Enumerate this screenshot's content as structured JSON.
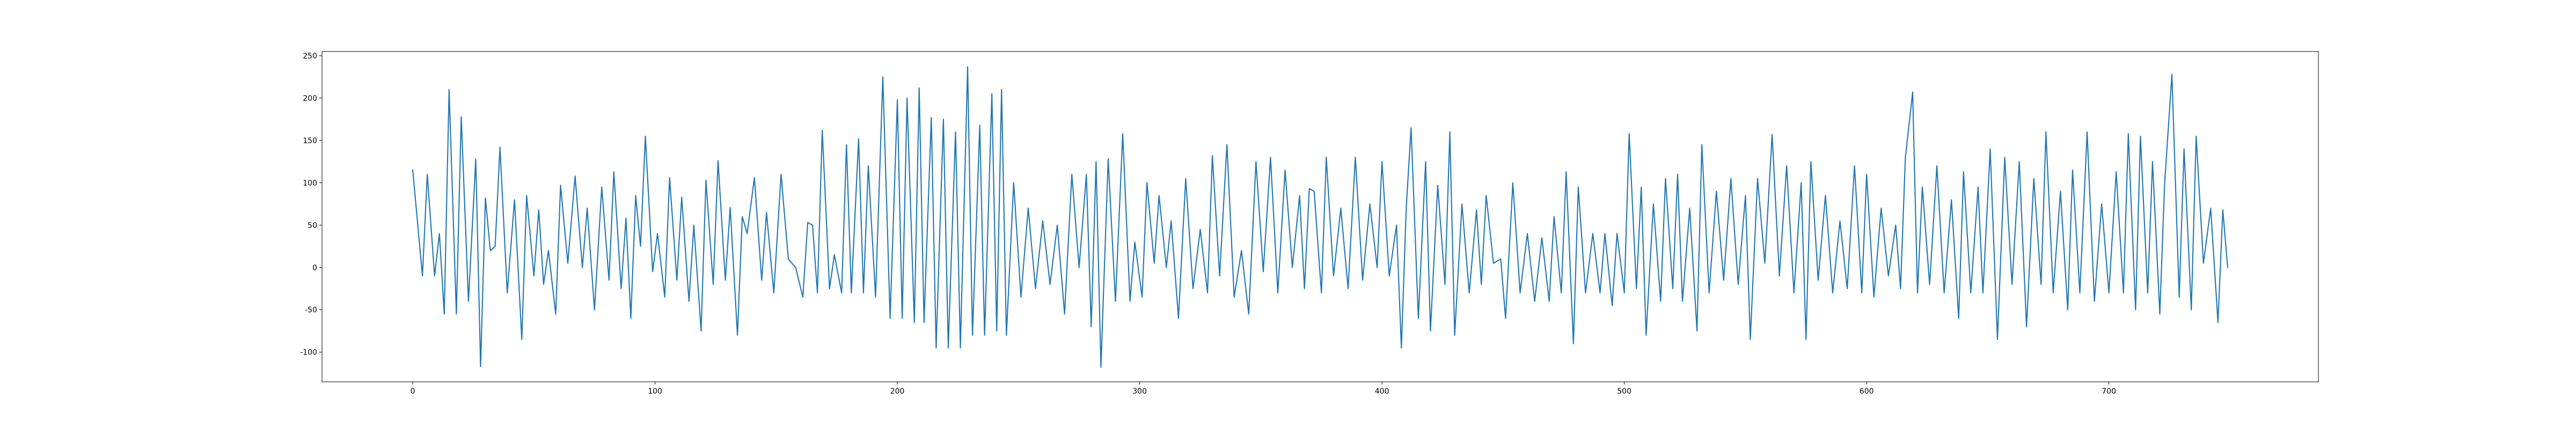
{
  "chart_data": {
    "type": "line",
    "color": "#1f77b4",
    "grid": false,
    "xlim": [
      -37.45,
      786.45
    ],
    "xticks": [
      0,
      100,
      200,
      300,
      400,
      500,
      600,
      700
    ],
    "ylim": [
      -135,
      255
    ],
    "yticks": [
      -100,
      -50,
      0,
      50,
      100,
      150,
      200,
      250
    ],
    "x": [
      0,
      4,
      6,
      9,
      11,
      13,
      15,
      18,
      20,
      23,
      26,
      28,
      30,
      32,
      34,
      36,
      39,
      42,
      45,
      47,
      50,
      52,
      54,
      56,
      59,
      61,
      64,
      67,
      70,
      72,
      75,
      78,
      81,
      83,
      86,
      88,
      90,
      92,
      94,
      96,
      99,
      101,
      104,
      106,
      109,
      111,
      114,
      116,
      119,
      121,
      124,
      126,
      129,
      131,
      134,
      136,
      138,
      141,
      144,
      146,
      149,
      152,
      155,
      158,
      161,
      163,
      165,
      167,
      169,
      172,
      174,
      177,
      179,
      181,
      184,
      186,
      188,
      191,
      194,
      197,
      200,
      202,
      204,
      207,
      209,
      211,
      214,
      216,
      219,
      221,
      224,
      226,
      229,
      231,
      234,
      236,
      239,
      241,
      243,
      245,
      248,
      251,
      254,
      257,
      260,
      263,
      266,
      269,
      272,
      275,
      278,
      280,
      282,
      284,
      287,
      290,
      293,
      296,
      298,
      301,
      303,
      306,
      308,
      311,
      313,
      316,
      319,
      322,
      325,
      328,
      330,
      333,
      336,
      339,
      342,
      345,
      348,
      351,
      354,
      357,
      360,
      363,
      366,
      368,
      370,
      372,
      375,
      377,
      380,
      383,
      386,
      389,
      392,
      395,
      398,
      400,
      403,
      406,
      408,
      410,
      412,
      415,
      418,
      420,
      423,
      426,
      428,
      430,
      433,
      436,
      439,
      441,
      443,
      446,
      449,
      451,
      454,
      457,
      460,
      463,
      466,
      469,
      471,
      474,
      476,
      479,
      481,
      484,
      487,
      490,
      492,
      495,
      497,
      500,
      502,
      505,
      507,
      509,
      512,
      515,
      517,
      520,
      522,
      524,
      527,
      530,
      532,
      535,
      538,
      541,
      544,
      547,
      550,
      552,
      555,
      558,
      561,
      564,
      567,
      570,
      573,
      575,
      577,
      580,
      583,
      586,
      589,
      592,
      595,
      598,
      600,
      603,
      606,
      609,
      612,
      614,
      616,
      619,
      621,
      623,
      626,
      629,
      632,
      635,
      638,
      640,
      643,
      646,
      648,
      651,
      654,
      657,
      660,
      663,
      666,
      669,
      672,
      674,
      677,
      680,
      683,
      685,
      688,
      691,
      694,
      697,
      700,
      703,
      706,
      708,
      711,
      713,
      716,
      718,
      721,
      723,
      726,
      729,
      731,
      734,
      736,
      739,
      742,
      745,
      747,
      749
    ],
    "values": [
      115,
      -10,
      110,
      -10,
      40,
      -55,
      210,
      -55,
      178,
      -40,
      128,
      -117,
      82,
      20,
      25,
      142,
      -30,
      80,
      -85,
      85,
      -10,
      68,
      -20,
      20,
      -55,
      97,
      5,
      108,
      0,
      70,
      -50,
      95,
      -15,
      113,
      -25,
      58,
      -60,
      85,
      25,
      155,
      -5,
      40,
      -35,
      106,
      -15,
      83,
      -40,
      50,
      -75,
      103,
      -20,
      126,
      -15,
      71,
      -80,
      60,
      40,
      106,
      -15,
      65,
      -30,
      110,
      10,
      0,
      -35,
      53,
      50,
      -30,
      162,
      -25,
      15,
      -30,
      145,
      -30,
      152,
      -30,
      120,
      -35,
      225,
      -60,
      198,
      -60,
      200,
      -65,
      212,
      -65,
      177,
      -95,
      175,
      -95,
      160,
      -95,
      237,
      -80,
      168,
      -80,
      205,
      -75,
      210,
      -80,
      100,
      -35,
      70,
      -25,
      55,
      -20,
      50,
      -55,
      110,
      0,
      110,
      -70,
      125,
      -118,
      128,
      -40,
      158,
      -40,
      30,
      -35,
      100,
      5,
      85,
      0,
      55,
      -60,
      105,
      -25,
      45,
      -30,
      132,
      -10,
      145,
      -35,
      20,
      -55,
      125,
      -5,
      130,
      -30,
      115,
      0,
      85,
      -25,
      93,
      90,
      -30,
      130,
      -10,
      70,
      -25,
      130,
      -15,
      75,
      0,
      125,
      -10,
      50,
      -95,
      70,
      165,
      -60,
      125,
      -75,
      97,
      -20,
      160,
      -80,
      75,
      -30,
      68,
      -20,
      85,
      5,
      10,
      -60,
      100,
      -30,
      40,
      -40,
      35,
      -40,
      60,
      -30,
      113,
      -90,
      95,
      -30,
      40,
      -30,
      40,
      -45,
      40,
      -30,
      158,
      -25,
      95,
      -80,
      75,
      -40,
      105,
      -25,
      110,
      -40,
      70,
      -75,
      145,
      -30,
      90,
      -15,
      105,
      -20,
      85,
      -85,
      105,
      5,
      157,
      -10,
      120,
      -30,
      100,
      -85,
      125,
      -15,
      85,
      -30,
      55,
      -25,
      120,
      -30,
      110,
      -35,
      70,
      -10,
      50,
      -25,
      130,
      207,
      -30,
      95,
      -20,
      120,
      -30,
      80,
      -60,
      113,
      -30,
      95,
      -30,
      140,
      -85,
      130,
      -20,
      125,
      -70,
      105,
      -20,
      160,
      -30,
      90,
      -50,
      115,
      -30,
      160,
      -40,
      75,
      -30,
      113,
      -30,
      158,
      -50,
      155,
      -30,
      125,
      -55,
      100,
      228,
      -35,
      140,
      -50,
      155,
      5,
      70,
      -65,
      68,
      0
    ]
  }
}
